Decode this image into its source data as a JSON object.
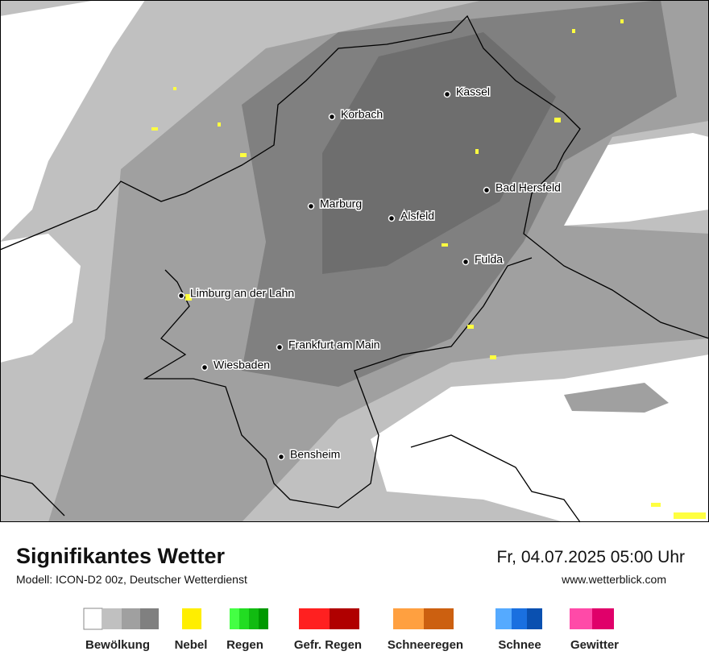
{
  "map": {
    "cities": [
      "Kassel",
      "Korbach",
      "Bad Hersfeld",
      "Marburg",
      "Alsfeld",
      "Fulda",
      "Limburg an der Lahn",
      "Frankfurt am Main",
      "Wiesbaden",
      "Bensheim"
    ]
  },
  "footer": {
    "title": "Signifikantes Wetter",
    "model": "Modell: ICON-D2 00z, Deutscher Wetterdienst",
    "datetime": "Fr, 04.07.2025 05:00 Uhr",
    "website": "www.wetterblick.com"
  },
  "legend": {
    "items": [
      "Bewölkung",
      "Nebel",
      "Regen",
      "Gefr. Regen",
      "Schneeregen",
      "Schnee",
      "Gewitter"
    ]
  }
}
